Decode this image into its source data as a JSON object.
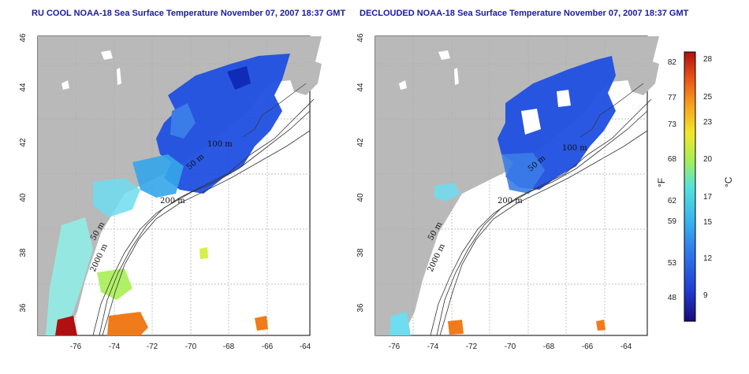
{
  "titles": {
    "left": "RU COOL NOAA-18 Sea Surface Temperature November 07, 2007 18:37 GMT",
    "right": "DECLOUDED NOAA-18 Sea Surface Temperature November 07, 2007 18:37 GMT"
  },
  "axes": {
    "lon_ticks": [
      "-76",
      "-74",
      "-72",
      "-70",
      "-68",
      "-66",
      "-64"
    ],
    "lat_ticks": [
      "36",
      "38",
      "40",
      "42",
      "44",
      "46"
    ]
  },
  "contour_labels": {
    "m100": "100 m",
    "m50": "50 m",
    "m200": "200 m",
    "m2000": "2000 m",
    "m50b": "50 m"
  },
  "colorbar": {
    "fahrenheit_ticks": [
      "82",
      "77",
      "73",
      "68",
      "62",
      "59",
      "53",
      "48"
    ],
    "celsius_ticks": [
      "28",
      "25",
      "23",
      "20",
      "17",
      "15",
      "12",
      "9"
    ],
    "fahrenheit_unit": "°F",
    "celsius_unit": "°C",
    "colors": [
      "#1a0a7a",
      "#1f3fd6",
      "#2f7bea",
      "#39b6ee",
      "#55e3d8",
      "#a8ee55",
      "#f4e62a",
      "#f5a31d",
      "#ea5517",
      "#b01010"
    ]
  },
  "colors": {
    "land": "#b9b9b9",
    "ocean_cold": "#1f4fe0",
    "ocean_warm": "#f07b1a",
    "title": "#1a1aa0"
  }
}
